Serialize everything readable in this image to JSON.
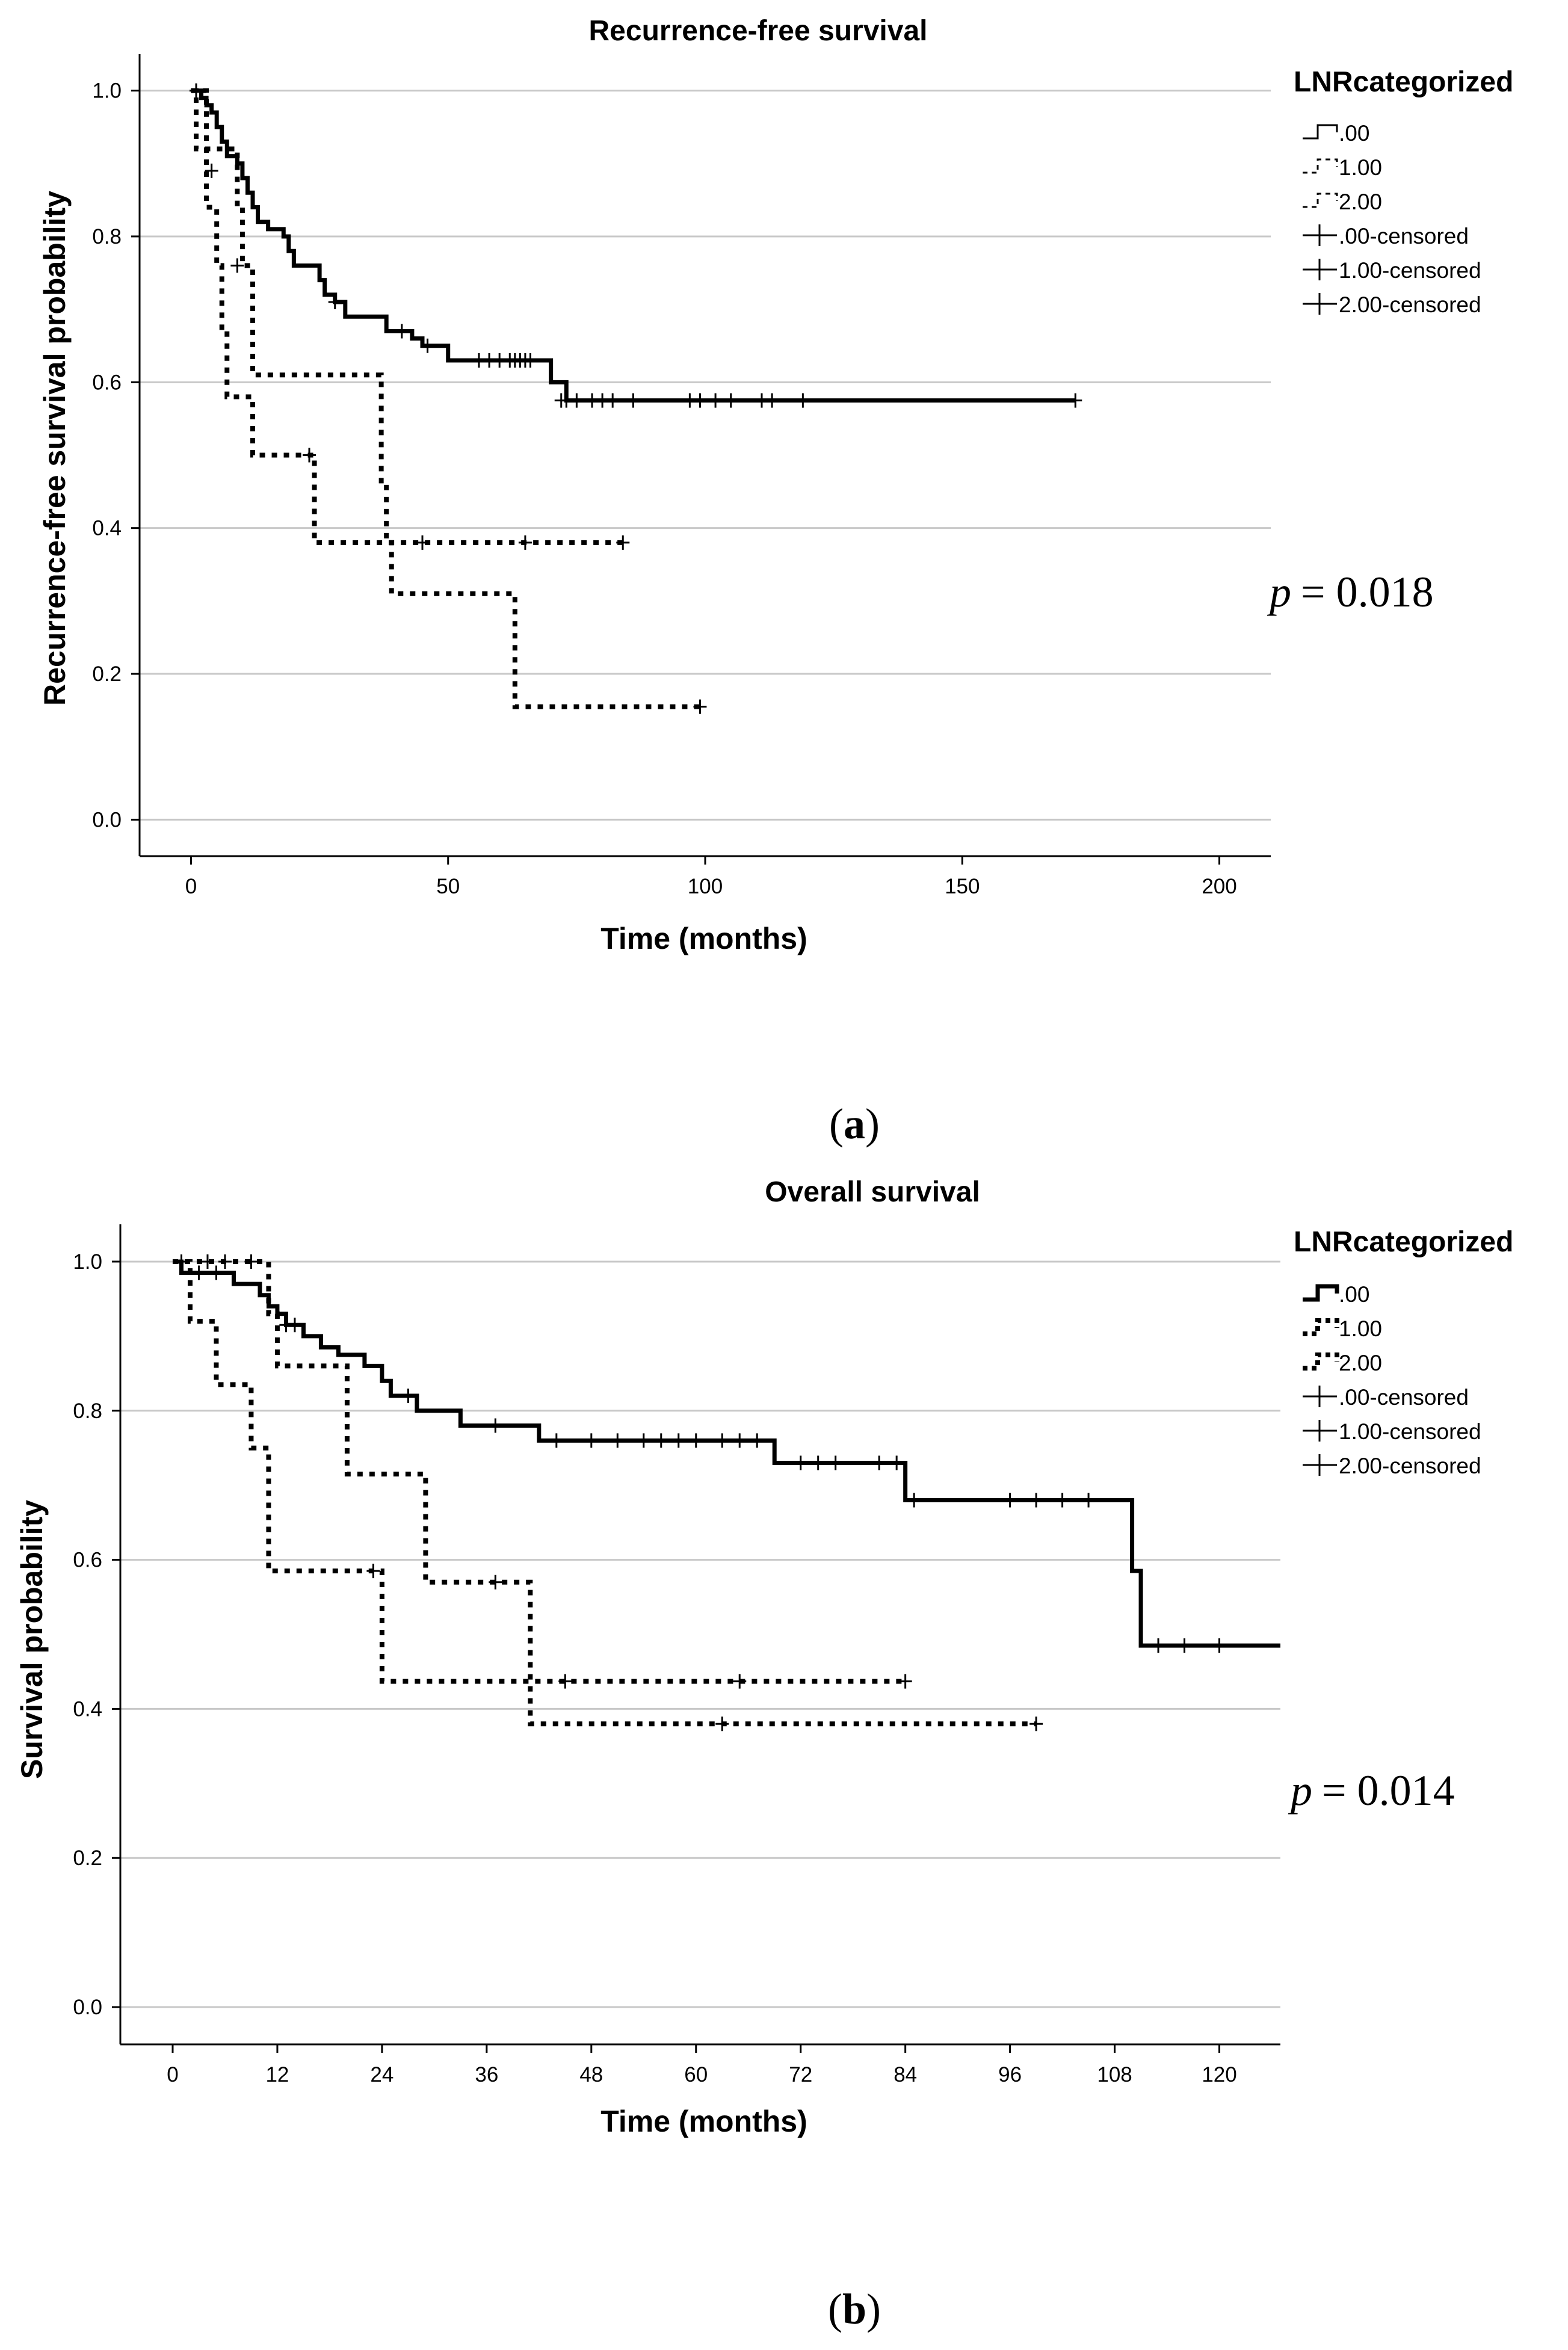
{
  "chart_data": [
    {
      "type": "line",
      "subtype": "kaplan-meier",
      "title": "Recurrence-free survival",
      "xlabel": "Time (months)",
      "ylabel": "Recurrence-free survival probability",
      "xlim": [
        -10,
        210
      ],
      "ylim": [
        -0.05,
        1.05
      ],
      "x_ticks": [
        0,
        50,
        100,
        150,
        200
      ],
      "x_tick_labels": [
        "0",
        "50",
        "100",
        "150",
        "200"
      ],
      "y_ticks": [
        0.0,
        0.2,
        0.4,
        0.6,
        0.8,
        1.0
      ],
      "y_tick_labels": [
        "0.0",
        "0.2",
        "0.4",
        "0.6",
        "0.8",
        "1.0"
      ],
      "grid": "horizontal",
      "legend_position": "top-right",
      "legend_title": "LNRcategorized",
      "legend_entries": [
        ".00",
        "1.00",
        "2.00",
        ".00-censored",
        "1.00-censored",
        "2.00-censored"
      ],
      "p_value_label": "p",
      "p_value_text": "= 0.018",
      "caption_label": "a",
      "series": [
        {
          "name": ".00",
          "style": "solid",
          "steps": [
            [
              0,
              1.0
            ],
            [
              2,
              0.99
            ],
            [
              3,
              0.98
            ],
            [
              4,
              0.97
            ],
            [
              5,
              0.95
            ],
            [
              6,
              0.93
            ],
            [
              7,
              0.91
            ],
            [
              9,
              0.9
            ],
            [
              10,
              0.88
            ],
            [
              11,
              0.86
            ],
            [
              12,
              0.84
            ],
            [
              13,
              0.82
            ],
            [
              15,
              0.81
            ],
            [
              18,
              0.8
            ],
            [
              19,
              0.78
            ],
            [
              20,
              0.76
            ],
            [
              25,
              0.74
            ],
            [
              26,
              0.72
            ],
            [
              28,
              0.71
            ],
            [
              30,
              0.69
            ],
            [
              38,
              0.67
            ],
            [
              43,
              0.66
            ],
            [
              45,
              0.65
            ],
            [
              50,
              0.63
            ],
            [
              70,
              0.6
            ],
            [
              73,
              0.575
            ],
            [
              172,
              0.575
            ]
          ],
          "censored": [
            [
              1,
              1.0
            ],
            [
              28,
              0.71
            ],
            [
              41,
              0.67
            ],
            [
              46,
              0.65
            ],
            [
              56,
              0.63
            ],
            [
              58,
              0.63
            ],
            [
              60,
              0.63
            ],
            [
              62,
              0.63
            ],
            [
              63,
              0.63
            ],
            [
              64,
              0.63
            ],
            [
              65,
              0.63
            ],
            [
              66,
              0.63
            ],
            [
              72,
              0.575
            ],
            [
              73,
              0.575
            ],
            [
              75,
              0.575
            ],
            [
              78,
              0.575
            ],
            [
              80,
              0.575
            ],
            [
              82,
              0.575
            ],
            [
              86,
              0.575
            ],
            [
              97,
              0.575
            ],
            [
              99,
              0.575
            ],
            [
              102,
              0.575
            ],
            [
              105,
              0.575
            ],
            [
              111,
              0.575
            ],
            [
              113,
              0.575
            ],
            [
              119,
              0.575
            ],
            [
              172,
              0.575
            ]
          ]
        },
        {
          "name": "1.00",
          "style": "dotted",
          "steps": [
            [
              0,
              1.0
            ],
            [
              1,
              0.92
            ],
            [
              9,
              0.84
            ],
            [
              10,
              0.76
            ],
            [
              12,
              0.61
            ],
            [
              37,
              0.46
            ],
            [
              38,
              0.38
            ],
            [
              84,
              0.38
            ]
          ],
          "censored": [
            [
              4,
              0.89
            ],
            [
              9,
              0.76
            ],
            [
              45,
              0.38
            ],
            [
              65,
              0.38
            ],
            [
              84,
              0.38
            ]
          ]
        },
        {
          "name": "2.00",
          "style": "dotted",
          "steps": [
            [
              0,
              1.0
            ],
            [
              3,
              0.84
            ],
            [
              5,
              0.76
            ],
            [
              6,
              0.67
            ],
            [
              7,
              0.58
            ],
            [
              12,
              0.5
            ],
            [
              24,
              0.38
            ],
            [
              39,
              0.31
            ],
            [
              63,
              0.155
            ],
            [
              99,
              0.155
            ]
          ],
          "censored": [
            [
              1,
              1.0
            ],
            [
              23,
              0.5
            ],
            [
              99,
              0.155
            ]
          ]
        }
      ]
    },
    {
      "type": "line",
      "subtype": "kaplan-meier",
      "title": "Overall survival",
      "xlabel": "Time (months)",
      "ylabel": "Survival probability",
      "xlim": [
        -6,
        127
      ],
      "ylim": [
        -0.05,
        1.05
      ],
      "x_ticks": [
        0,
        12,
        24,
        36,
        48,
        60,
        72,
        84,
        96,
        108,
        120
      ],
      "x_tick_labels": [
        "0",
        "12",
        "24",
        "36",
        "48",
        "60",
        "72",
        "84",
        "96",
        "108",
        "120"
      ],
      "y_ticks": [
        0.0,
        0.2,
        0.4,
        0.6,
        0.8,
        1.0
      ],
      "y_tick_labels": [
        "0.0",
        "0.2",
        "0.4",
        "0.6",
        "0.8",
        "1.0"
      ],
      "grid": "horizontal",
      "legend_position": "top-right",
      "legend_title": "LNRcategorized",
      "legend_entries": [
        ".00",
        "1.00",
        "2.00",
        ".00-censored",
        "1.00-censored",
        "2.00-censored"
      ],
      "p_value_label": "p",
      "p_value_text": "= 0.014",
      "caption_label": "b",
      "series": [
        {
          "name": ".00",
          "style": "solid",
          "steps": [
            [
              0,
              1.0
            ],
            [
              1,
              0.985
            ],
            [
              7,
              0.97
            ],
            [
              10,
              0.955
            ],
            [
              11,
              0.94
            ],
            [
              12,
              0.93
            ],
            [
              13,
              0.915
            ],
            [
              15,
              0.9
            ],
            [
              17,
              0.885
            ],
            [
              19,
              0.875
            ],
            [
              22,
              0.86
            ],
            [
              24,
              0.84
            ],
            [
              25,
              0.82
            ],
            [
              28,
              0.8
            ],
            [
              33,
              0.78
            ],
            [
              42,
              0.76
            ],
            [
              69,
              0.73
            ],
            [
              84,
              0.68
            ],
            [
              110,
              0.585
            ],
            [
              111,
              0.485
            ],
            [
              127,
              0.485
            ]
          ],
          "censored": [
            [
              1,
              1.0
            ],
            [
              3,
              0.985
            ],
            [
              5,
              0.985
            ],
            [
              13,
              0.915
            ],
            [
              14,
              0.915
            ],
            [
              27,
              0.82
            ],
            [
              37,
              0.78
            ],
            [
              44,
              0.76
            ],
            [
              48,
              0.76
            ],
            [
              51,
              0.76
            ],
            [
              54,
              0.76
            ],
            [
              56,
              0.76
            ],
            [
              58,
              0.76
            ],
            [
              60,
              0.76
            ],
            [
              63,
              0.76
            ],
            [
              65,
              0.76
            ],
            [
              67,
              0.76
            ],
            [
              72,
              0.73
            ],
            [
              74,
              0.73
            ],
            [
              76,
              0.73
            ],
            [
              81,
              0.73
            ],
            [
              83,
              0.73
            ],
            [
              85,
              0.68
            ],
            [
              96,
              0.68
            ],
            [
              99,
              0.68
            ],
            [
              102,
              0.68
            ],
            [
              105,
              0.68
            ],
            [
              113,
              0.485
            ],
            [
              116,
              0.485
            ],
            [
              120,
              0.485
            ]
          ]
        },
        {
          "name": "1.00",
          "style": "dotted",
          "steps": [
            [
              0,
              1.0
            ],
            [
              11,
              0.93
            ],
            [
              12,
              0.86
            ],
            [
              20,
              0.715
            ],
            [
              29,
              0.57
            ],
            [
              41,
              0.38
            ],
            [
              99,
              0.38
            ]
          ],
          "censored": [
            [
              4,
              1.0
            ],
            [
              6,
              1.0
            ],
            [
              9,
              1.0
            ],
            [
              37,
              0.57
            ],
            [
              63,
              0.38
            ],
            [
              99,
              0.38
            ]
          ]
        },
        {
          "name": "2.00",
          "style": "dotted",
          "steps": [
            [
              0,
              1.0
            ],
            [
              2,
              0.92
            ],
            [
              5,
              0.835
            ],
            [
              9,
              0.75
            ],
            [
              11,
              0.585
            ],
            [
              24,
              0.437
            ],
            [
              84,
              0.437
            ]
          ],
          "censored": [
            [
              23,
              0.585
            ],
            [
              45,
              0.437
            ],
            [
              65,
              0.437
            ],
            [
              84,
              0.437
            ]
          ]
        }
      ]
    }
  ]
}
